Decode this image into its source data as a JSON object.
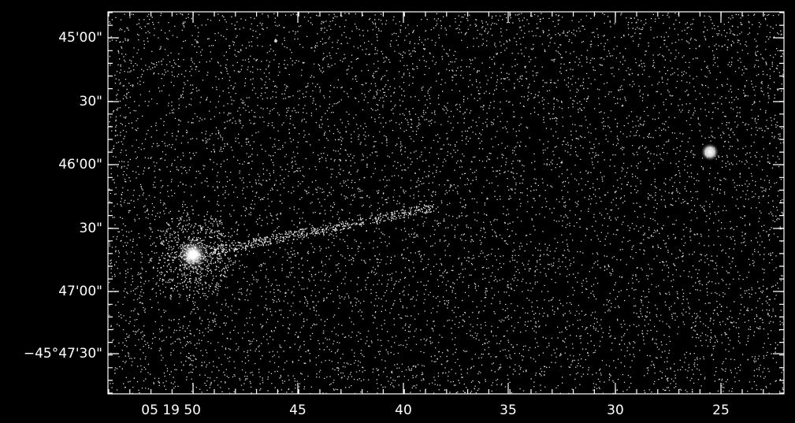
{
  "axes": {
    "y_ticks": [
      "45'00\"",
      "30\"",
      "46'00\"",
      "30\"",
      "47'00\"",
      "−45°47'30\""
    ],
    "x_ticks": [
      "05 19 50",
      "45",
      "40",
      "35",
      "30",
      "25"
    ]
  }
}
